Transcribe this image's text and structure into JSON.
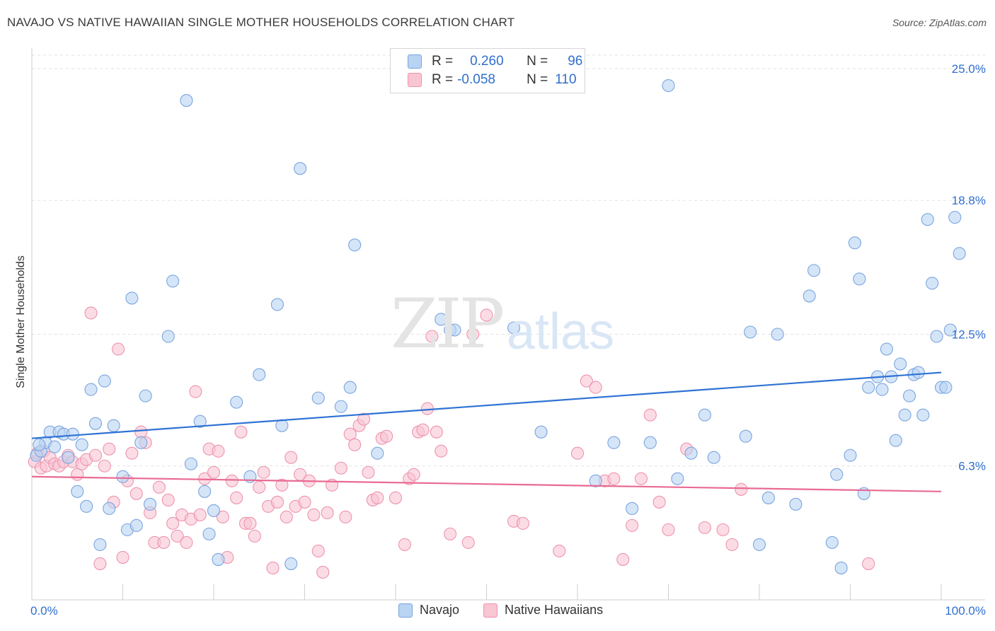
{
  "title": "NAVAJO VS NATIVE HAWAIIAN SINGLE MOTHER HOUSEHOLDS CORRELATION CHART",
  "source": "Source: ZipAtlas.com",
  "watermark": {
    "a": "ZIP",
    "b": "atlas"
  },
  "legend": {
    "r_label": "R =",
    "n_label": "N =",
    "rows": [
      {
        "r": "0.260",
        "n": "96"
      },
      {
        "r": "-0.058",
        "n": "110"
      }
    ]
  },
  "bottom_legend": [
    "Navajo",
    "Native Hawaiians"
  ],
  "colors": {
    "navajo_fill": "#b9d3f3",
    "navajo_stroke": "#7aa5de",
    "navajo_line": "#2f72d4",
    "hawaii_fill": "#f8c5d3",
    "hawaii_stroke": "#ee93ad",
    "hawaii_line": "#e86a92"
  },
  "chart_data": {
    "type": "scatter",
    "ylabel": "Single Mother Households",
    "xlim": [
      0,
      100
    ],
    "ylim": [
      0,
      25
    ],
    "x_tick_labels": [
      "0.0%",
      "100.0%"
    ],
    "y_ticks": [
      6.3,
      12.5,
      18.8,
      25.0
    ],
    "y_tick_labels": [
      "6.3%",
      "12.5%",
      "18.8%",
      "25.0%"
    ],
    "grid": true,
    "series": [
      {
        "name": "Navajo",
        "trend": [
          [
            0,
            7.6
          ],
          [
            100,
            10.7
          ]
        ],
        "points": [
          [
            0.5,
            6.8
          ],
          [
            1,
            7.0
          ],
          [
            1.5,
            7.4
          ],
          [
            2,
            7.9
          ],
          [
            2.5,
            7.2
          ],
          [
            3,
            7.9
          ],
          [
            3.5,
            7.8
          ],
          [
            4,
            6.7
          ],
          [
            4.5,
            7.8
          ],
          [
            5,
            5.1
          ],
          [
            5.5,
            7.3
          ],
          [
            6,
            4.4
          ],
          [
            6.5,
            9.9
          ],
          [
            7,
            8.3
          ],
          [
            7.5,
            2.6
          ],
          [
            8,
            10.3
          ],
          [
            8.5,
            4.3
          ],
          [
            9,
            8.2
          ],
          [
            10,
            5.8
          ],
          [
            10.5,
            3.3
          ],
          [
            11,
            14.2
          ],
          [
            11.5,
            3.5
          ],
          [
            12,
            7.4
          ],
          [
            12.5,
            9.6
          ],
          [
            13,
            4.5
          ],
          [
            15.5,
            15.0
          ],
          [
            15,
            12.4
          ],
          [
            17,
            23.5
          ],
          [
            17.5,
            6.4
          ],
          [
            18.5,
            8.4
          ],
          [
            19,
            5.1
          ],
          [
            19.5,
            3.1
          ],
          [
            20,
            4.2
          ],
          [
            20.5,
            1.9
          ],
          [
            22.5,
            9.3
          ],
          [
            24,
            5.8
          ],
          [
            25,
            10.6
          ],
          [
            27,
            13.9
          ],
          [
            27.5,
            8.2
          ],
          [
            28.5,
            1.7
          ],
          [
            29.5,
            20.3
          ],
          [
            31.5,
            9.5
          ],
          [
            34,
            9.1
          ],
          [
            35,
            10.0
          ],
          [
            35.5,
            16.7
          ],
          [
            38,
            6.9
          ],
          [
            45,
            13.2
          ],
          [
            46,
            12.7
          ],
          [
            46.5,
            12.7
          ],
          [
            53,
            12.8
          ],
          [
            56,
            7.9
          ],
          [
            62,
            5.6
          ],
          [
            64,
            7.4
          ],
          [
            66,
            4.3
          ],
          [
            68,
            7.4
          ],
          [
            70,
            24.2
          ],
          [
            71,
            5.7
          ],
          [
            72.5,
            6.9
          ],
          [
            74,
            8.7
          ],
          [
            75,
            6.7
          ],
          [
            78.5,
            7.7
          ],
          [
            79,
            12.6
          ],
          [
            80,
            2.6
          ],
          [
            81,
            4.8
          ],
          [
            82,
            12.5
          ],
          [
            84,
            4.5
          ],
          [
            85.5,
            14.3
          ],
          [
            86,
            15.5
          ],
          [
            88,
            2.7
          ],
          [
            88.5,
            5.9
          ],
          [
            89,
            1.5
          ],
          [
            90,
            6.8
          ],
          [
            90.5,
            16.8
          ],
          [
            91,
            15.1
          ],
          [
            91.5,
            5.0
          ],
          [
            92,
            10.0
          ],
          [
            93,
            10.5
          ],
          [
            93.5,
            9.9
          ],
          [
            94,
            11.8
          ],
          [
            94.5,
            10.5
          ],
          [
            95,
            7.5
          ],
          [
            95.5,
            11.1
          ],
          [
            96,
            8.7
          ],
          [
            96.5,
            9.6
          ],
          [
            97,
            10.6
          ],
          [
            97.5,
            10.7
          ],
          [
            98,
            8.7
          ],
          [
            98.5,
            17.9
          ],
          [
            99,
            14.9
          ],
          [
            99.5,
            12.4
          ],
          [
            100,
            10.0
          ],
          [
            100.5,
            10.0
          ],
          [
            101,
            12.7
          ],
          [
            101.5,
            18.0
          ],
          [
            102,
            16.3
          ],
          [
            0.8,
            7.3
          ]
        ]
      },
      {
        "name": "Native Hawaiians",
        "trend": [
          [
            0,
            5.8
          ],
          [
            100,
            5.1
          ]
        ],
        "points": [
          [
            0.3,
            6.5
          ],
          [
            0.6,
            6.9
          ],
          [
            1,
            6.2
          ],
          [
            1.3,
            7.0
          ],
          [
            1.6,
            6.3
          ],
          [
            2,
            6.7
          ],
          [
            2.5,
            6.4
          ],
          [
            3,
            6.3
          ],
          [
            3.5,
            6.5
          ],
          [
            4,
            6.8
          ],
          [
            4.5,
            6.5
          ],
          [
            5,
            5.9
          ],
          [
            5.5,
            6.4
          ],
          [
            6,
            6.6
          ],
          [
            6.5,
            13.5
          ],
          [
            7,
            6.8
          ],
          [
            7.5,
            1.7
          ],
          [
            8,
            6.3
          ],
          [
            8.5,
            7.1
          ],
          [
            9,
            4.6
          ],
          [
            9.5,
            11.8
          ],
          [
            10,
            2.0
          ],
          [
            10.5,
            5.6
          ],
          [
            11,
            6.9
          ],
          [
            11.5,
            5.0
          ],
          [
            12,
            7.9
          ],
          [
            12.5,
            7.4
          ],
          [
            13,
            4.1
          ],
          [
            13.5,
            2.7
          ],
          [
            14,
            5.3
          ],
          [
            14.5,
            2.7
          ],
          [
            15,
            4.7
          ],
          [
            15.5,
            3.6
          ],
          [
            16,
            3.0
          ],
          [
            16.5,
            4.0
          ],
          [
            17,
            2.7
          ],
          [
            17.5,
            3.8
          ],
          [
            18,
            9.8
          ],
          [
            18.5,
            4.0
          ],
          [
            19,
            5.7
          ],
          [
            19.5,
            7.1
          ],
          [
            20,
            6.0
          ],
          [
            20.5,
            7.0
          ],
          [
            21,
            3.9
          ],
          [
            21.5,
            2.0
          ],
          [
            22,
            5.6
          ],
          [
            22.5,
            4.8
          ],
          [
            23,
            7.9
          ],
          [
            23.5,
            3.6
          ],
          [
            24,
            3.6
          ],
          [
            24.5,
            3.0
          ],
          [
            25,
            5.3
          ],
          [
            25.5,
            6.0
          ],
          [
            26,
            4.4
          ],
          [
            26.5,
            1.5
          ],
          [
            27,
            4.6
          ],
          [
            27.5,
            5.4
          ],
          [
            28,
            3.9
          ],
          [
            28.5,
            6.7
          ],
          [
            29,
            4.4
          ],
          [
            29.5,
            5.9
          ],
          [
            30,
            4.6
          ],
          [
            30.5,
            5.6
          ],
          [
            31,
            4.0
          ],
          [
            31.5,
            2.3
          ],
          [
            32,
            1.3
          ],
          [
            32.5,
            4.1
          ],
          [
            33,
            5.4
          ],
          [
            34,
            6.2
          ],
          [
            34.5,
            3.9
          ],
          [
            35,
            7.8
          ],
          [
            35.5,
            7.3
          ],
          [
            36,
            8.2
          ],
          [
            36.5,
            8.5
          ],
          [
            37,
            6.0
          ],
          [
            37.5,
            4.7
          ],
          [
            38,
            4.8
          ],
          [
            38.5,
            7.6
          ],
          [
            39,
            7.7
          ],
          [
            40,
            4.8
          ],
          [
            41,
            2.6
          ],
          [
            41.5,
            5.7
          ],
          [
            42,
            5.9
          ],
          [
            42.5,
            7.9
          ],
          [
            43,
            8.0
          ],
          [
            43.5,
            9.0
          ],
          [
            44,
            12.4
          ],
          [
            44.5,
            7.9
          ],
          [
            45,
            7.0
          ],
          [
            46,
            3.1
          ],
          [
            48,
            2.7
          ],
          [
            48.5,
            12.5
          ],
          [
            50,
            13.4
          ],
          [
            53,
            3.7
          ],
          [
            54,
            3.6
          ],
          [
            58,
            2.3
          ],
          [
            60,
            6.9
          ],
          [
            61,
            10.3
          ],
          [
            62,
            10.0
          ],
          [
            63,
            5.6
          ],
          [
            64,
            5.7
          ],
          [
            65,
            1.9
          ],
          [
            66,
            3.5
          ],
          [
            67,
            5.7
          ],
          [
            68,
            8.7
          ],
          [
            69,
            4.6
          ],
          [
            70,
            3.3
          ],
          [
            72,
            7.1
          ],
          [
            74,
            3.4
          ],
          [
            76,
            3.3
          ],
          [
            77,
            2.6
          ],
          [
            78,
            5.2
          ],
          [
            92,
            1.7
          ]
        ]
      }
    ]
  }
}
